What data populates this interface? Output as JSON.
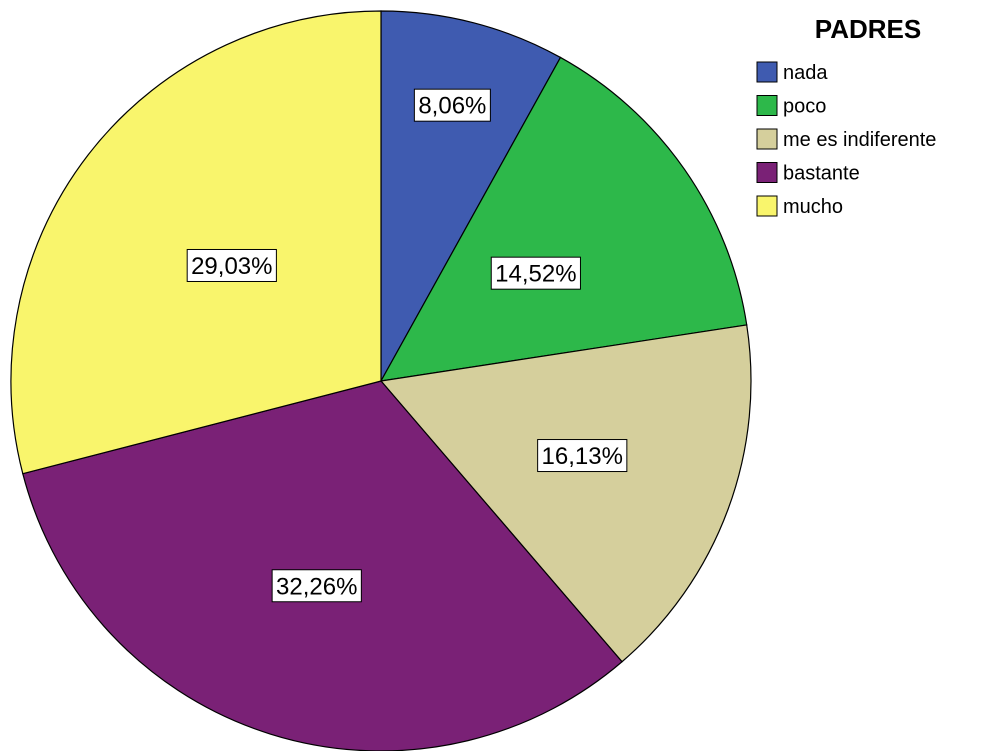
{
  "chart_data": {
    "type": "pie",
    "legend_title": "PADRES",
    "legend_position": "top-right",
    "categories": [
      "nada",
      "poco",
      "me es indiferente",
      "bastante",
      "mucho"
    ],
    "values": [
      8.06,
      14.52,
      16.13,
      32.26,
      29.03
    ],
    "value_labels": [
      "8,06%",
      "14,52%",
      "16,13%",
      "32,26%",
      "29,03%"
    ],
    "colors": [
      "#3f5bb0",
      "#2db84a",
      "#d5cf9c",
      "#7a2176",
      "#f9f56c"
    ],
    "start_angle": "12 o'clock",
    "direction": "clockwise"
  }
}
